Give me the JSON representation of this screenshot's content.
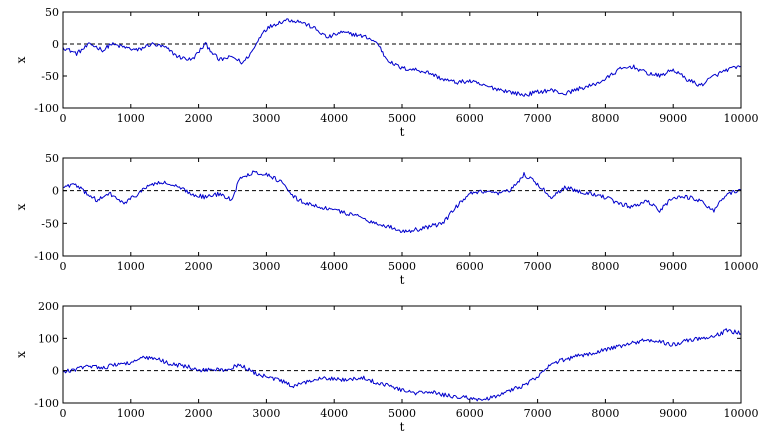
{
  "chart_data": [
    {
      "type": "line",
      "xlabel": "t",
      "ylabel": "x",
      "xlim": [
        0,
        10000
      ],
      "ylim": [
        -100,
        50
      ],
      "xticks": [
        0,
        1000,
        2000,
        3000,
        4000,
        5000,
        6000,
        7000,
        8000,
        9000,
        10000
      ],
      "yticks": [
        -100,
        -50,
        0,
        50
      ],
      "reference_line": 0,
      "grid": false,
      "series": [
        {
          "color": "#0000cc",
          "x": [
            0,
            200,
            400,
            600,
            700,
            900,
            1100,
            1300,
            1500,
            1700,
            1900,
            2100,
            2300,
            2500,
            2650,
            2800,
            2950,
            3100,
            3300,
            3500,
            3700,
            3900,
            4100,
            4300,
            4500,
            4650,
            4750,
            4850,
            5000,
            5200,
            5400,
            5600,
            5800,
            6000,
            6200,
            6400,
            6600,
            6800,
            7000,
            7200,
            7400,
            7600,
            7800,
            8000,
            8200,
            8400,
            8600,
            8800,
            9000,
            9200,
            9400,
            9600,
            9800,
            10000
          ],
          "y": [
            -5,
            -15,
            0,
            -10,
            0,
            -5,
            -10,
            0,
            -5,
            -20,
            -25,
            0,
            -25,
            -20,
            -30,
            -10,
            20,
            30,
            38,
            35,
            25,
            10,
            18,
            15,
            10,
            0,
            -20,
            -30,
            -38,
            -40,
            -45,
            -55,
            -60,
            -58,
            -65,
            -70,
            -75,
            -80,
            -75,
            -72,
            -78,
            -70,
            -65,
            -55,
            -40,
            -35,
            -45,
            -50,
            -40,
            -55,
            -65,
            -50,
            -40,
            -35
          ]
        }
      ]
    },
    {
      "type": "line",
      "xlabel": "t",
      "ylabel": "x",
      "xlim": [
        0,
        10000
      ],
      "ylim": [
        -100,
        50
      ],
      "xticks": [
        0,
        1000,
        2000,
        3000,
        4000,
        5000,
        6000,
        7000,
        8000,
        9000,
        10000
      ],
      "yticks": [
        -100,
        -50,
        0,
        50
      ],
      "reference_line": 0,
      "grid": false,
      "series": [
        {
          "color": "#0000cc",
          "x": [
            0,
            150,
            300,
            500,
            700,
            900,
            1100,
            1300,
            1500,
            1700,
            1900,
            2100,
            2300,
            2500,
            2600,
            2800,
            3000,
            3200,
            3400,
            3600,
            3800,
            4000,
            4200,
            4400,
            4600,
            4800,
            5000,
            5200,
            5400,
            5600,
            5800,
            6000,
            6200,
            6400,
            6600,
            6800,
            7000,
            7200,
            7400,
            7600,
            7800,
            8000,
            8200,
            8400,
            8600,
            8800,
            9000,
            9200,
            9400,
            9600,
            9800,
            10000
          ],
          "y": [
            5,
            10,
            0,
            -15,
            -5,
            -20,
            -5,
            10,
            12,
            5,
            -5,
            -10,
            -5,
            -15,
            20,
            28,
            25,
            15,
            -10,
            -20,
            -25,
            -30,
            -35,
            -40,
            -50,
            -55,
            -62,
            -60,
            -55,
            -50,
            -25,
            -5,
            -2,
            -5,
            0,
            25,
            10,
            -10,
            5,
            0,
            -5,
            -10,
            -20,
            -25,
            -15,
            -30,
            -10,
            -10,
            -15,
            -30,
            -5,
            0
          ]
        }
      ]
    },
    {
      "type": "line",
      "xlabel": "t",
      "ylabel": "x",
      "xlim": [
        0,
        10000
      ],
      "ylim": [
        -100,
        200
      ],
      "xticks": [
        0,
        1000,
        2000,
        3000,
        4000,
        5000,
        6000,
        7000,
        8000,
        9000,
        10000
      ],
      "yticks": [
        -100,
        0,
        100,
        200
      ],
      "reference_line": 0,
      "grid": false,
      "series": [
        {
          "color": "#0000cc",
          "x": [
            0,
            200,
            400,
            600,
            800,
            1000,
            1200,
            1400,
            1600,
            1800,
            2000,
            2200,
            2400,
            2600,
            2800,
            3000,
            3200,
            3400,
            3600,
            3800,
            4000,
            4200,
            4400,
            4600,
            4800,
            5000,
            5200,
            5400,
            5600,
            5800,
            6000,
            6200,
            6400,
            6600,
            6800,
            7000,
            7200,
            7400,
            7600,
            7800,
            8000,
            8200,
            8400,
            8600,
            8800,
            9000,
            9200,
            9400,
            9600,
            9800,
            10000
          ],
          "y": [
            -5,
            5,
            15,
            10,
            20,
            25,
            40,
            35,
            20,
            15,
            0,
            5,
            0,
            20,
            -5,
            -20,
            -30,
            -50,
            -35,
            -20,
            -25,
            -30,
            -20,
            -35,
            -45,
            -60,
            -70,
            -65,
            -75,
            -80,
            -85,
            -90,
            -80,
            -60,
            -45,
            -20,
            20,
            35,
            45,
            55,
            65,
            75,
            85,
            95,
            90,
            80,
            95,
            100,
            105,
            125,
            115
          ]
        }
      ]
    }
  ]
}
